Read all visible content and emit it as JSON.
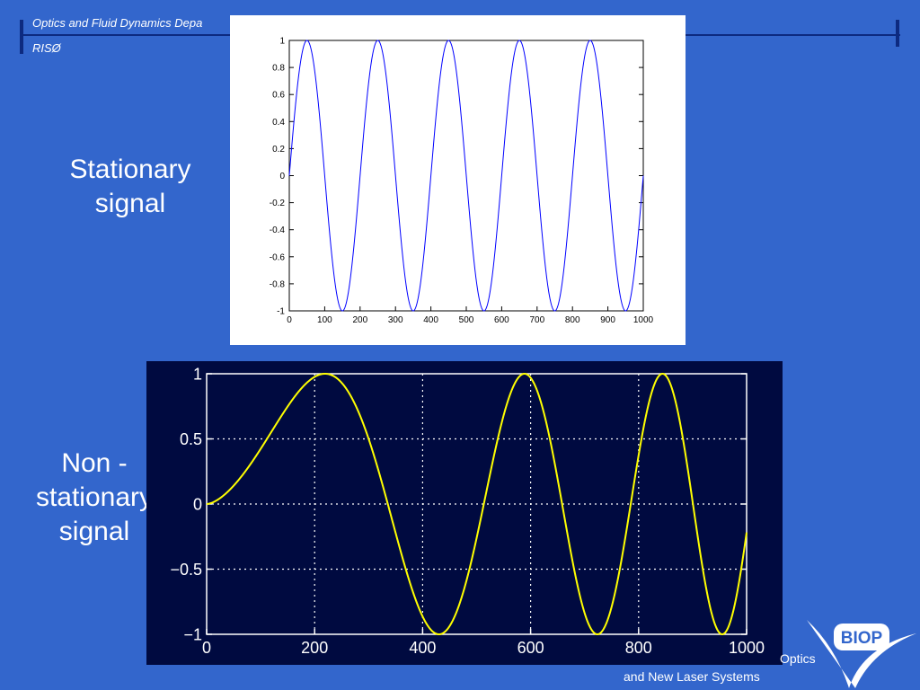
{
  "header": {
    "department": "Optics and Fluid Dynamics Depa",
    "institution": "RISØ"
  },
  "labels": {
    "stationary": [
      "Stationary",
      "signal"
    ],
    "non_stationary": [
      "Non -",
      "stationary",
      "signal"
    ]
  },
  "footer": {
    "line1": "Optics",
    "line2": "and New Laser Systems",
    "logo_text": "BIOP"
  },
  "colors": {
    "background": "#3366cc",
    "chart1_line": "#0000ff",
    "chart2_line": "#ffff00",
    "chart2_bg": "#000a40"
  },
  "chart_data": [
    {
      "type": "line",
      "function": "sin(2*pi*x/200)",
      "x_range": [
        0,
        1000
      ],
      "ylim": [
        -1,
        1
      ],
      "x_ticks": [
        "0",
        "100",
        "200",
        "300",
        "400",
        "500",
        "600",
        "700",
        "800",
        "900",
        "1000"
      ],
      "y_ticks": [
        "1",
        "0.8",
        "0.6",
        "0.4",
        "0.2",
        "0",
        "-0.2",
        "-0.4",
        "-0.6",
        "-0.8",
        "-1"
      ],
      "grid": false
    },
    {
      "type": "line",
      "function": "chirp sin(0.00024*x^1.63), increasing frequency",
      "x_range": [
        0,
        1000
      ],
      "ylim": [
        -1,
        1
      ],
      "x_ticks": [
        "0",
        "200",
        "400",
        "600",
        "800",
        "1000"
      ],
      "y_ticks": [
        "1",
        "0.5",
        "0",
        "−0.5",
        "−1"
      ],
      "grid": true
    }
  ]
}
